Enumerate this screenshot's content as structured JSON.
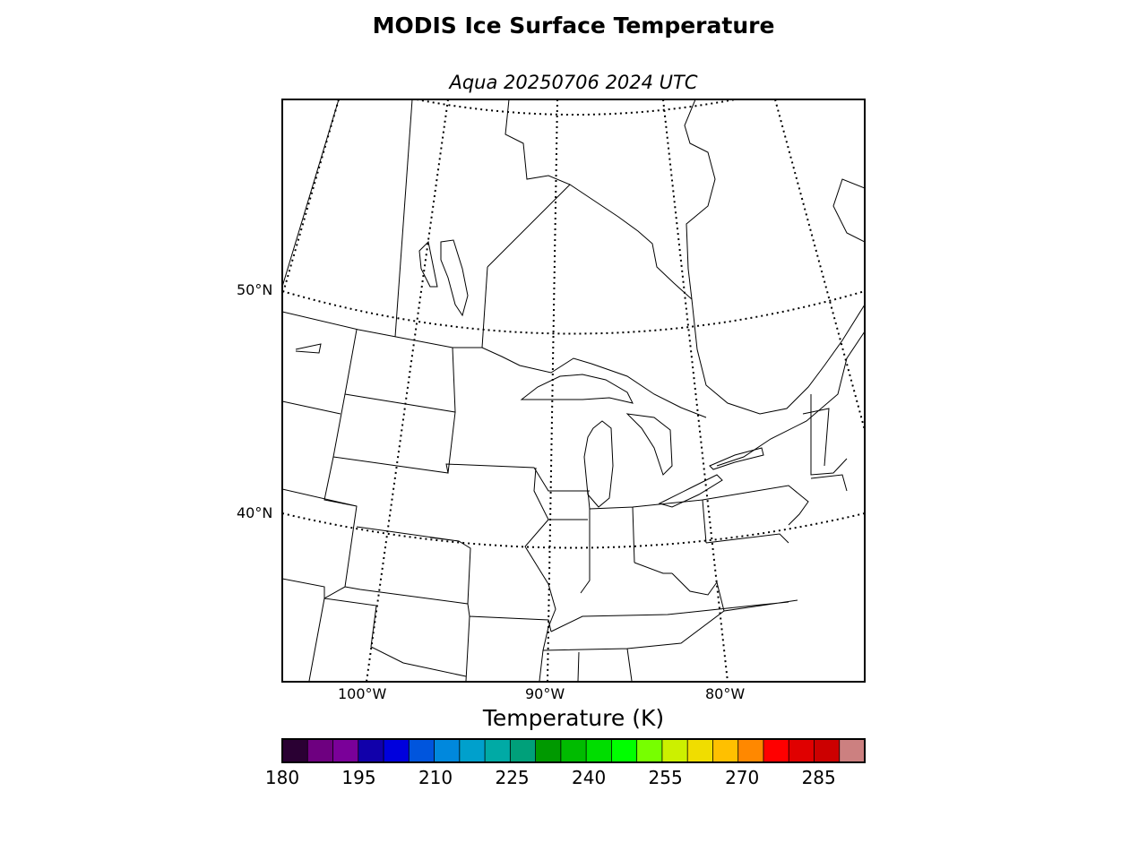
{
  "title": "MODIS Ice Surface Temperature",
  "subtitle": "Aqua 20250706 2024 UTC",
  "map": {
    "lat_labels": [
      "50°N",
      "40°N"
    ],
    "lon_labels": [
      "100°W",
      "90°W",
      "80°W"
    ]
  },
  "colorbar": {
    "label": "Temperature (K)",
    "min": 180,
    "max": 294,
    "tick_labels": [
      "180",
      "195",
      "210",
      "225",
      "240",
      "255",
      "270",
      "285"
    ],
    "colors": [
      "#2a0033",
      "#6e0080",
      "#7a0099",
      "#1100aa",
      "#0000dd",
      "#0055dd",
      "#0088dd",
      "#00a0cc",
      "#00aaa5",
      "#00a07a",
      "#009900",
      "#00bb00",
      "#00dd00",
      "#00ff00",
      "#77ff00",
      "#ccf000",
      "#f0dd00",
      "#ffc000",
      "#ff8800",
      "#ff0000",
      "#e00000",
      "#cc0000",
      "#cc8080"
    ]
  }
}
